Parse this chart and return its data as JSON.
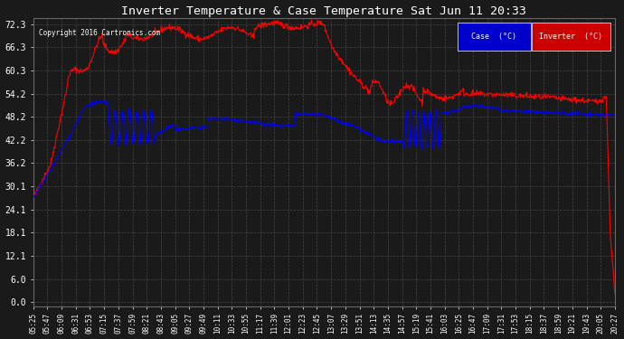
{
  "title": "Inverter Temperature & Case Temperature Sat Jun 11 20:33",
  "copyright": "Copyright 2016 Cartronics.com",
  "background_color": "#1a1a1a",
  "plot_bg_color": "#1a1a1a",
  "grid_color": "#444444",
  "title_color": "#ffffff",
  "yticks": [
    0.0,
    6.0,
    12.1,
    18.1,
    24.1,
    30.1,
    36.2,
    42.2,
    48.2,
    54.2,
    60.3,
    66.3,
    72.3
  ],
  "ylim": [
    -1.0,
    74.0
  ],
  "legend_case_label": "Case  (°C)",
  "legend_inverter_label": "Inverter  (°C)",
  "legend_case_bg": "#0000cc",
  "legend_inverter_bg": "#cc0000",
  "case_color": "#0000ff",
  "inverter_color": "#ff0000",
  "x_labels": [
    "05:25",
    "05:47",
    "06:09",
    "06:31",
    "06:53",
    "07:15",
    "07:37",
    "07:59",
    "08:21",
    "08:43",
    "09:05",
    "09:27",
    "09:49",
    "10:11",
    "10:33",
    "10:55",
    "11:17",
    "11:39",
    "12:01",
    "12:23",
    "12:45",
    "13:07",
    "13:29",
    "13:51",
    "14:13",
    "14:35",
    "14:57",
    "15:19",
    "15:41",
    "16:03",
    "16:25",
    "16:47",
    "17:09",
    "17:31",
    "17:53",
    "18:15",
    "18:37",
    "18:59",
    "19:21",
    "19:43",
    "20:05",
    "20:27"
  ]
}
